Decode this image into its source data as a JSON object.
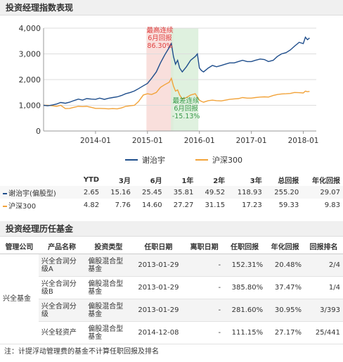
{
  "section1_title": "投资经理指数表现",
  "section2_title": "投资经理历任基金",
  "chart_data": {
    "type": "line",
    "yticks": [
      "4,000",
      "3,000",
      "2,000",
      "1,000",
      "0"
    ],
    "ylim": [
      0,
      4000
    ],
    "xticks": [
      "2014-01",
      "2015-01",
      "2016-01",
      "2017-01",
      "2018-01"
    ],
    "x_numeric": [
      2013.0,
      2018.25
    ],
    "series": [
      {
        "name": "谢治宇",
        "color": "#1f4e8c",
        "points": [
          [
            2013.0,
            1000
          ],
          [
            2013.08,
            980
          ],
          [
            2013.17,
            1010
          ],
          [
            2013.25,
            1050
          ],
          [
            2013.33,
            1110
          ],
          [
            2013.42,
            1080
          ],
          [
            2013.5,
            1120
          ],
          [
            2013.58,
            1180
          ],
          [
            2013.67,
            1240
          ],
          [
            2013.75,
            1200
          ],
          [
            2013.83,
            1260
          ],
          [
            2013.92,
            1240
          ],
          [
            2014.0,
            1230
          ],
          [
            2014.08,
            1280
          ],
          [
            2014.17,
            1230
          ],
          [
            2014.25,
            1270
          ],
          [
            2014.33,
            1300
          ],
          [
            2014.42,
            1330
          ],
          [
            2014.5,
            1380
          ],
          [
            2014.58,
            1450
          ],
          [
            2014.67,
            1500
          ],
          [
            2014.75,
            1560
          ],
          [
            2014.83,
            1650
          ],
          [
            2014.92,
            1760
          ],
          [
            2015.0,
            1850
          ],
          [
            2015.08,
            2050
          ],
          [
            2015.17,
            2300
          ],
          [
            2015.25,
            2650
          ],
          [
            2015.33,
            2950
          ],
          [
            2015.42,
            3250
          ],
          [
            2015.46,
            3400
          ],
          [
            2015.5,
            2900
          ],
          [
            2015.54,
            2600
          ],
          [
            2015.58,
            2750
          ],
          [
            2015.62,
            2450
          ],
          [
            2015.67,
            2300
          ],
          [
            2015.75,
            2500
          ],
          [
            2015.83,
            2750
          ],
          [
            2015.92,
            2900
          ],
          [
            2015.96,
            3000
          ],
          [
            2016.0,
            2450
          ],
          [
            2016.04,
            2350
          ],
          [
            2016.08,
            2300
          ],
          [
            2016.17,
            2450
          ],
          [
            2016.25,
            2550
          ],
          [
            2016.33,
            2500
          ],
          [
            2016.42,
            2550
          ],
          [
            2016.5,
            2600
          ],
          [
            2016.58,
            2650
          ],
          [
            2016.67,
            2650
          ],
          [
            2016.75,
            2700
          ],
          [
            2016.83,
            2750
          ],
          [
            2016.92,
            2700
          ],
          [
            2017.0,
            2700
          ],
          [
            2017.08,
            2750
          ],
          [
            2017.17,
            2800
          ],
          [
            2017.25,
            2780
          ],
          [
            2017.33,
            2700
          ],
          [
            2017.42,
            2750
          ],
          [
            2017.5,
            2900
          ],
          [
            2017.58,
            3000
          ],
          [
            2017.67,
            3050
          ],
          [
            2017.75,
            3150
          ],
          [
            2017.83,
            3300
          ],
          [
            2017.92,
            3450
          ],
          [
            2018.0,
            3400
          ],
          [
            2018.04,
            3650
          ],
          [
            2018.08,
            3550
          ],
          [
            2018.12,
            3620
          ]
        ]
      },
      {
        "name": "沪深300",
        "color": "#f2a33a",
        "points": [
          [
            2013.0,
            1000
          ],
          [
            2013.08,
            1000
          ],
          [
            2013.17,
            980
          ],
          [
            2013.25,
            960
          ],
          [
            2013.33,
            1000
          ],
          [
            2013.42,
            870
          ],
          [
            2013.5,
            880
          ],
          [
            2013.58,
            920
          ],
          [
            2013.67,
            960
          ],
          [
            2013.75,
            950
          ],
          [
            2013.83,
            960
          ],
          [
            2013.92,
            920
          ],
          [
            2014.0,
            880
          ],
          [
            2014.08,
            880
          ],
          [
            2014.17,
            870
          ],
          [
            2014.25,
            860
          ],
          [
            2014.33,
            870
          ],
          [
            2014.42,
            860
          ],
          [
            2014.5,
            900
          ],
          [
            2014.58,
            960
          ],
          [
            2014.67,
            980
          ],
          [
            2014.75,
            1000
          ],
          [
            2014.83,
            1150
          ],
          [
            2014.92,
            1400
          ],
          [
            2015.0,
            1450
          ],
          [
            2015.08,
            1420
          ],
          [
            2015.17,
            1500
          ],
          [
            2015.25,
            1700
          ],
          [
            2015.33,
            1800
          ],
          [
            2015.42,
            1900
          ],
          [
            2015.46,
            2050
          ],
          [
            2015.5,
            1750
          ],
          [
            2015.54,
            1550
          ],
          [
            2015.58,
            1600
          ],
          [
            2015.62,
            1400
          ],
          [
            2015.67,
            1250
          ],
          [
            2015.75,
            1300
          ],
          [
            2015.83,
            1400
          ],
          [
            2015.92,
            1450
          ],
          [
            2016.0,
            1200
          ],
          [
            2016.04,
            1150
          ],
          [
            2016.08,
            1120
          ],
          [
            2016.17,
            1180
          ],
          [
            2016.25,
            1200
          ],
          [
            2016.33,
            1180
          ],
          [
            2016.42,
            1170
          ],
          [
            2016.5,
            1200
          ],
          [
            2016.58,
            1230
          ],
          [
            2016.67,
            1250
          ],
          [
            2016.75,
            1260
          ],
          [
            2016.83,
            1300
          ],
          [
            2016.92,
            1280
          ],
          [
            2017.0,
            1280
          ],
          [
            2017.08,
            1300
          ],
          [
            2017.17,
            1320
          ],
          [
            2017.25,
            1330
          ],
          [
            2017.33,
            1320
          ],
          [
            2017.42,
            1380
          ],
          [
            2017.5,
            1420
          ],
          [
            2017.58,
            1440
          ],
          [
            2017.67,
            1450
          ],
          [
            2017.75,
            1460
          ],
          [
            2017.83,
            1500
          ],
          [
            2017.92,
            1490
          ],
          [
            2018.0,
            1480
          ],
          [
            2018.04,
            1550
          ],
          [
            2018.08,
            1530
          ],
          [
            2018.12,
            1540
          ]
        ]
      }
    ],
    "annotations": [
      {
        "lines": [
          "最高连续",
          "6月回报",
          "86.30%"
        ],
        "color": "#e04040",
        "range": [
          2014.98,
          2015.5
        ],
        "band_color": "#f8d9d6"
      },
      {
        "lines": [
          "最差连续",
          "6月回报",
          "-15.13%"
        ],
        "color": "#3a9a4a",
        "range": [
          2015.45,
          2015.98
        ],
        "band_color": "#d9eed9"
      }
    ]
  },
  "perf_table": {
    "headers": [
      "",
      "YTD",
      "3月",
      "6月",
      "1年",
      "2年",
      "3年",
      "总回报",
      "年化回报"
    ],
    "rows": [
      {
        "name": "谢治宇(偏股型)",
        "color": "#1f4e8c",
        "values": [
          "2.65",
          "15.16",
          "25.45",
          "35.81",
          "49.52",
          "118.93",
          "255.20",
          "29.07"
        ]
      },
      {
        "name": "沪深300",
        "color": "#f2a33a",
        "values": [
          "4.82",
          "7.76",
          "14.60",
          "27.27",
          "31.15",
          "17.23",
          "59.33",
          "9.83"
        ]
      }
    ]
  },
  "fund_table": {
    "headers": [
      "管理公司",
      "产品名称",
      "投资类型",
      "任职日期",
      "离职日期",
      "任职回报",
      "年化回报",
      "回报排名"
    ],
    "company": "兴全基金",
    "rows": [
      {
        "product": [
          "兴全合润分",
          "级A"
        ],
        "type": [
          "偏股混合型",
          "基金"
        ],
        "start": "2013-01-29",
        "end": "-",
        "ret": "152.31%",
        "annual": "20.48%",
        "rank": "2/4"
      },
      {
        "product": [
          "兴全合润分",
          "级B"
        ],
        "type": [
          "偏股混合型",
          "基金"
        ],
        "start": "2013-01-29",
        "end": "-",
        "ret": "385.80%",
        "annual": "37.47%",
        "rank": "1/4"
      },
      {
        "product": [
          "兴全合润分",
          "级"
        ],
        "type": [
          "偏股混合型",
          "基金"
        ],
        "start": "2013-01-29",
        "end": "-",
        "ret": "281.60%",
        "annual": "30.95%",
        "rank": "3/393"
      },
      {
        "product": [
          "兴全轻资产"
        ],
        "type": [
          "偏股混合型",
          "基金"
        ],
        "start": "2014-12-08",
        "end": "-",
        "ret": "111.15%",
        "annual": "27.17%",
        "rank": "25/441"
      }
    ]
  },
  "note": "注：计提浮动管理费的基金不计算任职回报及排名"
}
